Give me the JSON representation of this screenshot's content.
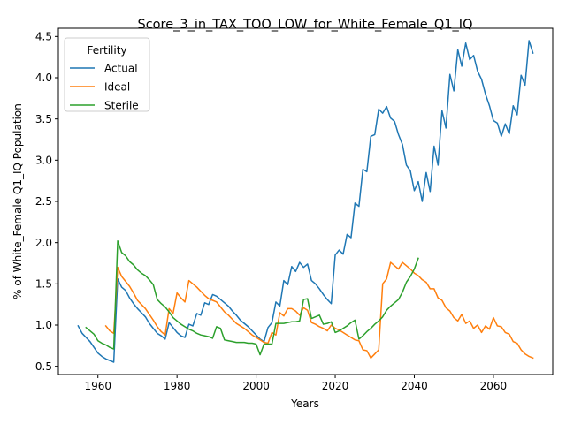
{
  "chart_data": {
    "type": "line",
    "title": "Score_3_in_TAX_TOO_LOW_for_White_Female_Q1_IQ",
    "xlabel": "Years",
    "ylabel": "% of White_Female Q1_IQ Population",
    "xlim": [
      1950,
      2075
    ],
    "ylim": [
      0.4,
      4.6
    ],
    "xticks": [
      1960,
      1980,
      2000,
      2020,
      2040,
      2060
    ],
    "yticks": [
      0.5,
      1.0,
      1.5,
      2.0,
      2.5,
      3.0,
      3.5,
      4.0,
      4.5
    ],
    "grid": false,
    "legend": {
      "title": "Fertility",
      "position": "upper-left"
    },
    "series": [
      {
        "name": "Actual",
        "color": "#1f77b4",
        "points": [
          [
            1955,
            0.99
          ],
          [
            1956,
            0.9
          ],
          [
            1957,
            0.85
          ],
          [
            1958,
            0.8
          ],
          [
            1959,
            0.73
          ],
          [
            1960,
            0.66
          ],
          [
            1961,
            0.62
          ],
          [
            1962,
            0.59
          ],
          [
            1963,
            0.57
          ],
          [
            1964,
            0.55
          ],
          [
            1965,
            1.56
          ],
          [
            1966,
            1.46
          ],
          [
            1967,
            1.42
          ],
          [
            1968,
            1.33
          ],
          [
            1969,
            1.26
          ],
          [
            1970,
            1.2
          ],
          [
            1971,
            1.15
          ],
          [
            1972,
            1.1
          ],
          [
            1973,
            1.02
          ],
          [
            1974,
            0.96
          ],
          [
            1975,
            0.9
          ],
          [
            1976,
            0.87
          ],
          [
            1977,
            0.83
          ],
          [
            1978,
            1.03
          ],
          [
            1979,
            0.97
          ],
          [
            1980,
            0.91
          ],
          [
            1981,
            0.87
          ],
          [
            1982,
            0.85
          ],
          [
            1983,
            1.01
          ],
          [
            1984,
            0.99
          ],
          [
            1985,
            1.14
          ],
          [
            1986,
            1.12
          ],
          [
            1987,
            1.27
          ],
          [
            1988,
            1.25
          ],
          [
            1989,
            1.37
          ],
          [
            1990,
            1.35
          ],
          [
            1991,
            1.31
          ],
          [
            1992,
            1.27
          ],
          [
            1993,
            1.23
          ],
          [
            1994,
            1.17
          ],
          [
            1995,
            1.12
          ],
          [
            1996,
            1.06
          ],
          [
            1997,
            1.02
          ],
          [
            1998,
            0.98
          ],
          [
            1999,
            0.93
          ],
          [
            2000,
            0.88
          ],
          [
            2001,
            0.83
          ],
          [
            2002,
            0.8
          ],
          [
            2003,
            0.97
          ],
          [
            2004,
            1.03
          ],
          [
            2005,
            1.28
          ],
          [
            2006,
            1.23
          ],
          [
            2007,
            1.54
          ],
          [
            2008,
            1.49
          ],
          [
            2009,
            1.71
          ],
          [
            2010,
            1.65
          ],
          [
            2011,
            1.76
          ],
          [
            2012,
            1.7
          ],
          [
            2013,
            1.74
          ],
          [
            2014,
            1.54
          ],
          [
            2015,
            1.5
          ],
          [
            2016,
            1.44
          ],
          [
            2017,
            1.37
          ],
          [
            2018,
            1.31
          ],
          [
            2019,
            1.26
          ],
          [
            2020,
            1.85
          ],
          [
            2021,
            1.91
          ],
          [
            2022,
            1.86
          ],
          [
            2023,
            2.1
          ],
          [
            2024,
            2.06
          ],
          [
            2025,
            2.48
          ],
          [
            2026,
            2.44
          ],
          [
            2027,
            2.89
          ],
          [
            2028,
            2.86
          ],
          [
            2029,
            3.29
          ],
          [
            2030,
            3.31
          ],
          [
            2031,
            3.62
          ],
          [
            2032,
            3.57
          ],
          [
            2033,
            3.65
          ],
          [
            2034,
            3.51
          ],
          [
            2035,
            3.47
          ],
          [
            2036,
            3.31
          ],
          [
            2037,
            3.19
          ],
          [
            2038,
            2.94
          ],
          [
            2039,
            2.87
          ],
          [
            2040,
            2.63
          ],
          [
            2041,
            2.74
          ],
          [
            2042,
            2.5
          ],
          [
            2043,
            2.85
          ],
          [
            2044,
            2.62
          ],
          [
            2045,
            3.17
          ],
          [
            2046,
            2.94
          ],
          [
            2047,
            3.6
          ],
          [
            2048,
            3.39
          ],
          [
            2049,
            4.04
          ],
          [
            2050,
            3.84
          ],
          [
            2051,
            4.34
          ],
          [
            2052,
            4.14
          ],
          [
            2053,
            4.42
          ],
          [
            2054,
            4.22
          ],
          [
            2055,
            4.27
          ],
          [
            2056,
            4.08
          ],
          [
            2057,
            3.98
          ],
          [
            2058,
            3.8
          ],
          [
            2059,
            3.66
          ],
          [
            2060,
            3.48
          ],
          [
            2061,
            3.45
          ],
          [
            2062,
            3.29
          ],
          [
            2063,
            3.44
          ],
          [
            2064,
            3.32
          ],
          [
            2065,
            3.66
          ],
          [
            2066,
            3.55
          ],
          [
            2067,
            4.03
          ],
          [
            2068,
            3.91
          ],
          [
            2069,
            4.45
          ],
          [
            2070,
            4.3
          ]
        ]
      },
      {
        "name": "Ideal",
        "color": "#ff7f0e",
        "points": [
          [
            1962,
            0.99
          ],
          [
            1963,
            0.93
          ],
          [
            1964,
            0.9
          ],
          [
            1965,
            1.7
          ],
          [
            1966,
            1.59
          ],
          [
            1967,
            1.53
          ],
          [
            1968,
            1.47
          ],
          [
            1969,
            1.39
          ],
          [
            1970,
            1.3
          ],
          [
            1971,
            1.25
          ],
          [
            1972,
            1.2
          ],
          [
            1973,
            1.13
          ],
          [
            1974,
            1.06
          ],
          [
            1975,
            0.98
          ],
          [
            1976,
            0.92
          ],
          [
            1977,
            0.88
          ],
          [
            1978,
            1.2
          ],
          [
            1979,
            1.14
          ],
          [
            1980,
            1.39
          ],
          [
            1981,
            1.33
          ],
          [
            1982,
            1.28
          ],
          [
            1983,
            1.54
          ],
          [
            1984,
            1.5
          ],
          [
            1985,
            1.46
          ],
          [
            1986,
            1.41
          ],
          [
            1987,
            1.36
          ],
          [
            1988,
            1.32
          ],
          [
            1989,
            1.3
          ],
          [
            1990,
            1.28
          ],
          [
            1991,
            1.22
          ],
          [
            1992,
            1.16
          ],
          [
            1993,
            1.12
          ],
          [
            1994,
            1.07
          ],
          [
            1995,
            1.02
          ],
          [
            1996,
            0.99
          ],
          [
            1997,
            0.96
          ],
          [
            1998,
            0.92
          ],
          [
            1999,
            0.88
          ],
          [
            2000,
            0.85
          ],
          [
            2001,
            0.82
          ],
          [
            2002,
            0.79
          ],
          [
            2003,
            0.78
          ],
          [
            2004,
            0.91
          ],
          [
            2005,
            0.88
          ],
          [
            2006,
            1.15
          ],
          [
            2007,
            1.11
          ],
          [
            2008,
            1.2
          ],
          [
            2009,
            1.2
          ],
          [
            2010,
            1.17
          ],
          [
            2011,
            1.12
          ],
          [
            2012,
            1.21
          ],
          [
            2013,
            1.18
          ],
          [
            2014,
            1.03
          ],
          [
            2015,
            1.01
          ],
          [
            2016,
            0.98
          ],
          [
            2017,
            0.96
          ],
          [
            2018,
            0.93
          ],
          [
            2019,
            1.0
          ],
          [
            2020,
            0.96
          ],
          [
            2021,
            0.94
          ],
          [
            2022,
            0.91
          ],
          [
            2023,
            0.88
          ],
          [
            2024,
            0.85
          ],
          [
            2025,
            0.82
          ],
          [
            2026,
            0.81
          ],
          [
            2027,
            0.7
          ],
          [
            2028,
            0.69
          ],
          [
            2029,
            0.6
          ],
          [
            2030,
            0.65
          ],
          [
            2031,
            0.7
          ],
          [
            2032,
            1.5
          ],
          [
            2033,
            1.56
          ],
          [
            2034,
            1.76
          ],
          [
            2035,
            1.72
          ],
          [
            2036,
            1.68
          ],
          [
            2037,
            1.76
          ],
          [
            2038,
            1.72
          ],
          [
            2039,
            1.68
          ],
          [
            2040,
            1.63
          ],
          [
            2041,
            1.6
          ],
          [
            2042,
            1.55
          ],
          [
            2043,
            1.52
          ],
          [
            2044,
            1.44
          ],
          [
            2045,
            1.44
          ],
          [
            2046,
            1.33
          ],
          [
            2047,
            1.3
          ],
          [
            2048,
            1.21
          ],
          [
            2049,
            1.17
          ],
          [
            2050,
            1.09
          ],
          [
            2051,
            1.05
          ],
          [
            2052,
            1.13
          ],
          [
            2053,
            1.02
          ],
          [
            2054,
            1.05
          ],
          [
            2055,
            0.96
          ],
          [
            2056,
            1.0
          ],
          [
            2057,
            0.91
          ],
          [
            2058,
            0.99
          ],
          [
            2059,
            0.95
          ],
          [
            2060,
            1.09
          ],
          [
            2061,
            0.99
          ],
          [
            2062,
            0.98
          ],
          [
            2063,
            0.91
          ],
          [
            2064,
            0.89
          ],
          [
            2065,
            0.8
          ],
          [
            2066,
            0.78
          ],
          [
            2067,
            0.7
          ],
          [
            2068,
            0.65
          ],
          [
            2069,
            0.62
          ],
          [
            2070,
            0.6
          ]
        ]
      },
      {
        "name": "Sterile",
        "color": "#2ca02c",
        "points": [
          [
            1957,
            0.97
          ],
          [
            1958,
            0.93
          ],
          [
            1959,
            0.89
          ],
          [
            1960,
            0.81
          ],
          [
            1961,
            0.78
          ],
          [
            1962,
            0.76
          ],
          [
            1963,
            0.73
          ],
          [
            1964,
            0.71
          ],
          [
            1965,
            2.02
          ],
          [
            1966,
            1.88
          ],
          [
            1967,
            1.84
          ],
          [
            1968,
            1.77
          ],
          [
            1969,
            1.73
          ],
          [
            1970,
            1.67
          ],
          [
            1971,
            1.63
          ],
          [
            1972,
            1.6
          ],
          [
            1973,
            1.55
          ],
          [
            1974,
            1.49
          ],
          [
            1975,
            1.31
          ],
          [
            1976,
            1.26
          ],
          [
            1977,
            1.22
          ],
          [
            1978,
            1.16
          ],
          [
            1979,
            1.09
          ],
          [
            1980,
            1.05
          ],
          [
            1981,
            1.01
          ],
          [
            1982,
            0.98
          ],
          [
            1983,
            0.95
          ],
          [
            1984,
            0.93
          ],
          [
            1985,
            0.9
          ],
          [
            1986,
            0.88
          ],
          [
            1987,
            0.87
          ],
          [
            1988,
            0.86
          ],
          [
            1989,
            0.84
          ],
          [
            1990,
            0.98
          ],
          [
            1991,
            0.96
          ],
          [
            1992,
            0.82
          ],
          [
            1993,
            0.81
          ],
          [
            1994,
            0.8
          ],
          [
            1995,
            0.79
          ],
          [
            1996,
            0.79
          ],
          [
            1997,
            0.79
          ],
          [
            1998,
            0.78
          ],
          [
            1999,
            0.78
          ],
          [
            2000,
            0.77
          ],
          [
            2001,
            0.64
          ],
          [
            2002,
            0.77
          ],
          [
            2003,
            0.77
          ],
          [
            2004,
            0.77
          ],
          [
            2005,
            1.02
          ],
          [
            2006,
            1.02
          ],
          [
            2007,
            1.02
          ],
          [
            2008,
            1.03
          ],
          [
            2009,
            1.04
          ],
          [
            2010,
            1.04
          ],
          [
            2011,
            1.05
          ],
          [
            2012,
            1.31
          ],
          [
            2013,
            1.32
          ],
          [
            2014,
            1.08
          ],
          [
            2015,
            1.1
          ],
          [
            2016,
            1.12
          ],
          [
            2017,
            1.01
          ],
          [
            2018,
            1.02
          ],
          [
            2019,
            1.04
          ],
          [
            2020,
            0.91
          ],
          [
            2021,
            0.93
          ],
          [
            2022,
            0.96
          ],
          [
            2023,
            0.99
          ],
          [
            2024,
            1.03
          ],
          [
            2025,
            1.06
          ],
          [
            2026,
            0.83
          ],
          [
            2027,
            0.87
          ],
          [
            2028,
            0.92
          ],
          [
            2029,
            0.96
          ],
          [
            2030,
            1.01
          ],
          [
            2031,
            1.05
          ],
          [
            2032,
            1.1
          ],
          [
            2033,
            1.18
          ],
          [
            2034,
            1.23
          ],
          [
            2035,
            1.27
          ],
          [
            2036,
            1.31
          ],
          [
            2037,
            1.4
          ],
          [
            2038,
            1.52
          ],
          [
            2039,
            1.59
          ],
          [
            2040,
            1.68
          ],
          [
            2041,
            1.81
          ]
        ]
      }
    ]
  }
}
